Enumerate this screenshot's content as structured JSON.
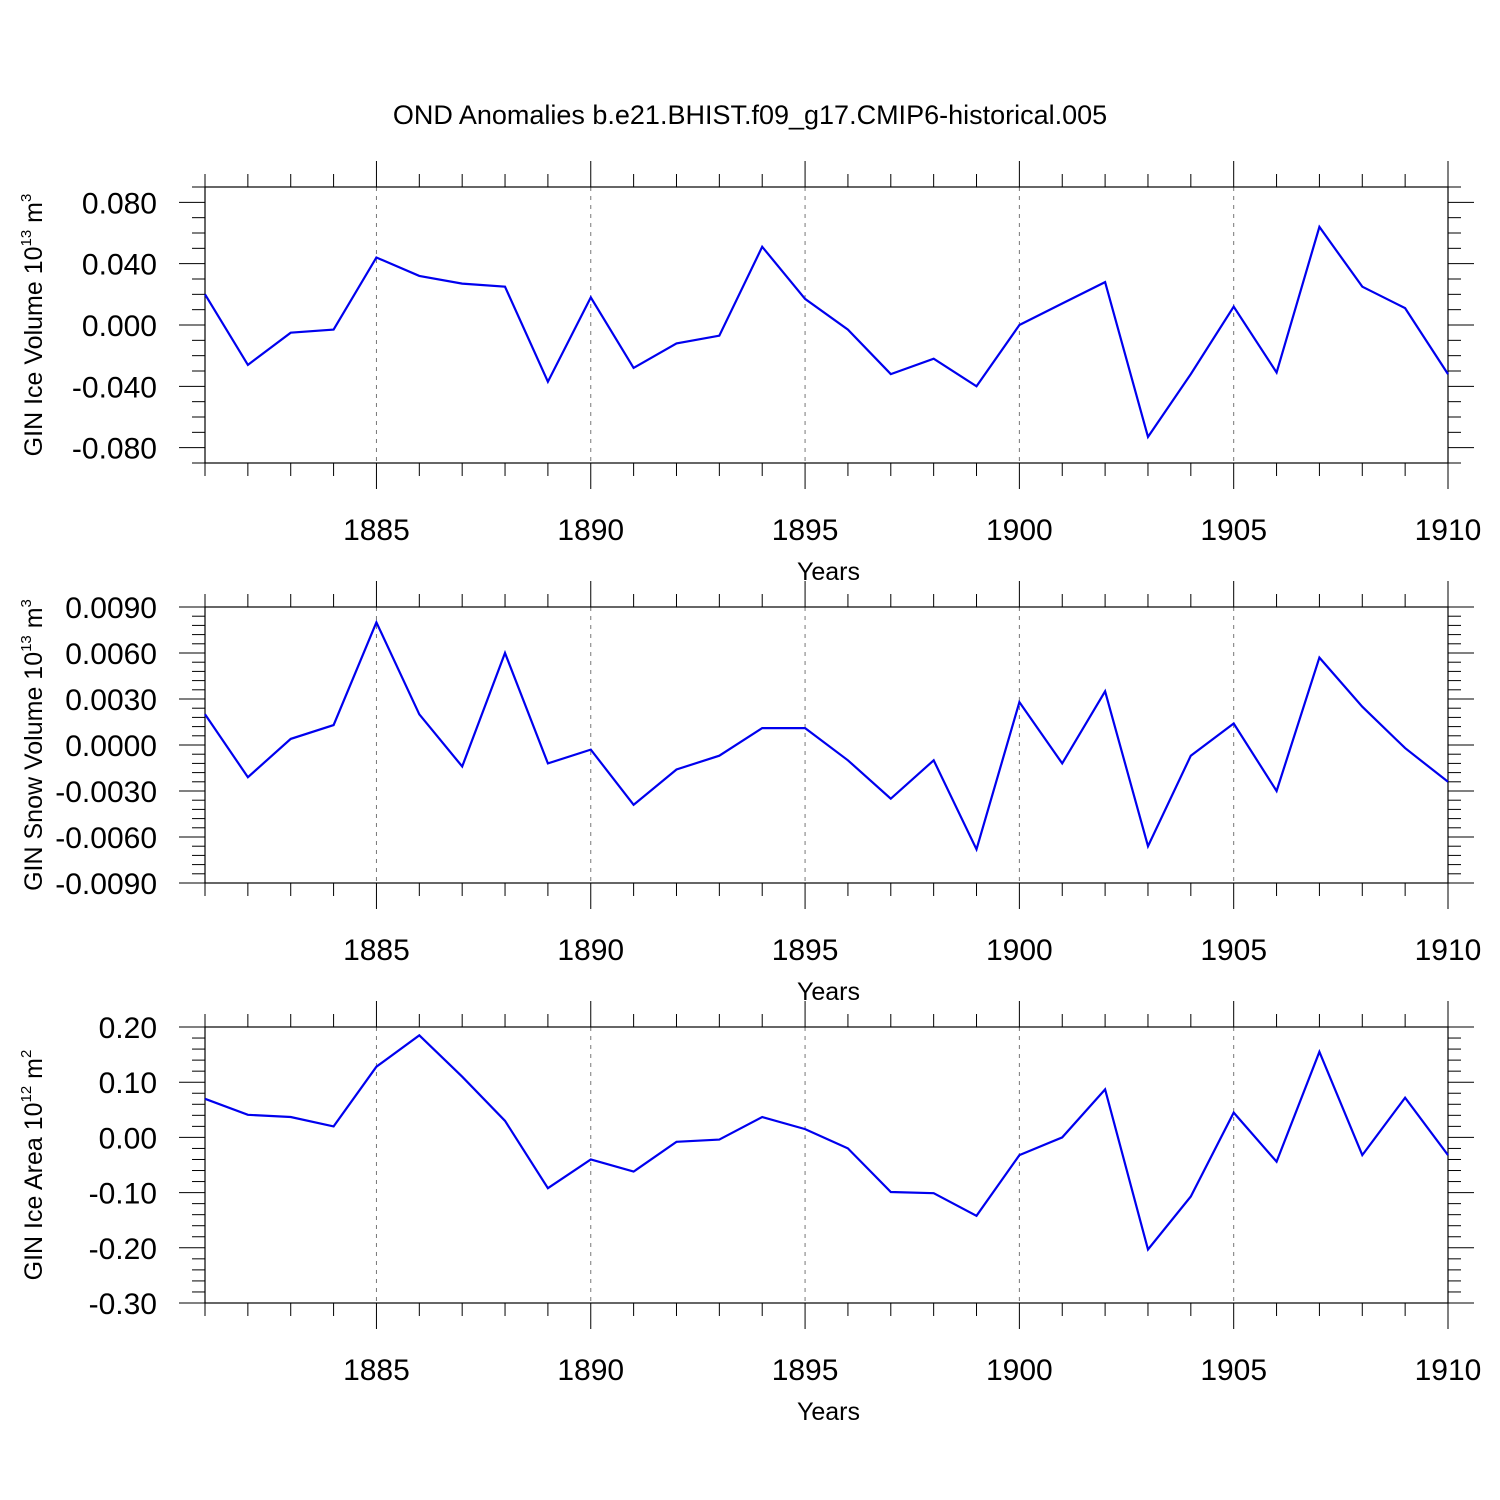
{
  "title": "OND Anomalies b.e21.BHIST.f09_g17.CMIP6-historical.005",
  "colors": {
    "line": "#0000ee",
    "axis": "#000000",
    "grid": "#777777"
  },
  "chart_data": [
    {
      "type": "line",
      "title": "OND Anomalies b.e21.BHIST.f09_g17.CMIP6-historical.005",
      "xlabel": "Years",
      "ylabel": "GIN Ice Volume",
      "yunit": {
        "base": "10",
        "exp": "13",
        "unit": "m",
        "unit_exp": "3"
      },
      "xlim": [
        1881,
        1910
      ],
      "ylim": [
        -0.09,
        0.09
      ],
      "xticks": [
        "1885",
        "1890",
        "1895",
        "1900",
        "1905",
        "1910"
      ],
      "yticks": [
        "0.080",
        "0.040",
        "0.000",
        "-0.040",
        "-0.080"
      ],
      "grid": "vertical dashed at major x ticks",
      "x": [
        1881,
        1882,
        1883,
        1884,
        1885,
        1886,
        1887,
        1888,
        1889,
        1890,
        1891,
        1892,
        1893,
        1894,
        1895,
        1896,
        1897,
        1898,
        1899,
        1900,
        1901,
        1902,
        1903,
        1904,
        1905,
        1906,
        1907,
        1908,
        1909,
        1910
      ],
      "values": [
        0.02,
        -0.026,
        -0.005,
        -0.003,
        0.044,
        0.032,
        0.027,
        0.025,
        -0.037,
        0.018,
        -0.028,
        -0.012,
        -0.007,
        0.051,
        0.017,
        -0.003,
        -0.032,
        -0.022,
        -0.04,
        0.0,
        0.014,
        0.028,
        -0.073,
        -0.032,
        0.012,
        -0.031,
        0.064,
        0.025,
        0.011,
        -0.032
      ]
    },
    {
      "type": "line",
      "xlabel": "Years",
      "ylabel": "GIN Snow Volume",
      "yunit": {
        "base": "10",
        "exp": "13",
        "unit": "m",
        "unit_exp": "3"
      },
      "xlim": [
        1881,
        1910
      ],
      "ylim": [
        -0.009,
        0.009
      ],
      "xticks": [
        "1885",
        "1890",
        "1895",
        "1900",
        "1905",
        "1910"
      ],
      "yticks": [
        "0.0090",
        "0.0060",
        "0.0030",
        "0.0000",
        "-0.0030",
        "-0.0060",
        "-0.0090"
      ],
      "grid": "vertical dashed at major x ticks",
      "x": [
        1881,
        1882,
        1883,
        1884,
        1885,
        1886,
        1887,
        1888,
        1889,
        1890,
        1891,
        1892,
        1893,
        1894,
        1895,
        1896,
        1897,
        1898,
        1899,
        1900,
        1901,
        1902,
        1903,
        1904,
        1905,
        1906,
        1907,
        1908,
        1909,
        1910
      ],
      "values": [
        0.002,
        -0.0021,
        0.0004,
        0.0013,
        0.008,
        0.002,
        -0.0014,
        0.006,
        -0.0012,
        -0.0003,
        -0.0039,
        -0.0016,
        -0.0007,
        0.0011,
        0.0011,
        -0.001,
        -0.0035,
        -0.001,
        -0.0068,
        0.0028,
        -0.0012,
        0.0035,
        -0.0066,
        -0.0007,
        0.0014,
        -0.003,
        0.0057,
        0.0025,
        -0.0002,
        -0.0024
      ]
    },
    {
      "type": "line",
      "xlabel": "Years",
      "ylabel": "GIN Ice Area",
      "yunit": {
        "base": "10",
        "exp": "12",
        "unit": "m",
        "unit_exp": "2"
      },
      "xlim": [
        1881,
        1910
      ],
      "ylim": [
        -0.3,
        0.2
      ],
      "xticks": [
        "1885",
        "1890",
        "1895",
        "1900",
        "1905",
        "1910"
      ],
      "yticks": [
        "0.20",
        "0.10",
        "0.00",
        "-0.10",
        "-0.20",
        "-0.30"
      ],
      "grid": "vertical dashed at major x ticks",
      "x": [
        1881,
        1882,
        1883,
        1884,
        1885,
        1886,
        1887,
        1888,
        1889,
        1890,
        1891,
        1892,
        1893,
        1894,
        1895,
        1896,
        1897,
        1898,
        1899,
        1900,
        1901,
        1902,
        1903,
        1904,
        1905,
        1906,
        1907,
        1908,
        1909,
        1910
      ],
      "values": [
        0.07,
        0.041,
        0.037,
        0.02,
        0.128,
        0.185,
        0.11,
        0.03,
        -0.092,
        -0.04,
        -0.062,
        -0.008,
        -0.004,
        0.037,
        0.015,
        -0.02,
        -0.099,
        -0.101,
        -0.142,
        -0.032,
        0.0,
        0.087,
        -0.203,
        -0.107,
        0.045,
        -0.044,
        0.155,
        -0.032,
        0.072,
        -0.032
      ]
    }
  ]
}
